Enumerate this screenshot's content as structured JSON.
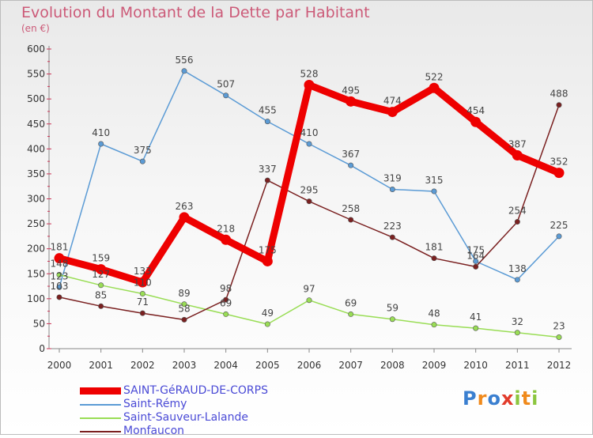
{
  "chart_data": {
    "type": "line",
    "title": "Evolution du Montant de la Dette par Habitant",
    "unit": "(en €)",
    "categories": [
      "2000",
      "2001",
      "2002",
      "2003",
      "2004",
      "2005",
      "2006",
      "2007",
      "2008",
      "2009",
      "2010",
      "2011",
      "2012"
    ],
    "ylim": [
      0,
      600
    ],
    "yticks": [
      0,
      50,
      100,
      150,
      200,
      250,
      300,
      350,
      400,
      450,
      500,
      550,
      600
    ],
    "grid": false,
    "legend_position": "bottom-left",
    "series": [
      {
        "name": "SAINT-GéRAUD-DE-CORPS",
        "color": "#ee0000",
        "emphasis": true,
        "values": [
          181,
          159,
          133,
          263,
          218,
          175,
          528,
          495,
          474,
          522,
          454,
          387,
          352
        ]
      },
      {
        "name": "Saint-Rémy",
        "color": "#5b9bd5",
        "emphasis": false,
        "values": [
          123,
          410,
          375,
          556,
          507,
          455,
          410,
          367,
          319,
          315,
          175,
          138,
          225
        ]
      },
      {
        "name": "Saint-Sauveur-Lalande",
        "color": "#99dd55",
        "emphasis": false,
        "values": [
          148,
          127,
          110,
          89,
          69,
          49,
          97,
          69,
          59,
          48,
          41,
          32,
          23
        ]
      },
      {
        "name": "Monfaucon",
        "color": "#7a2020",
        "emphasis": false,
        "values": [
          103,
          85,
          71,
          58,
          98,
          337,
          295,
          258,
          223,
          181,
          164,
          254,
          488
        ]
      }
    ],
    "point_labels": [
      {
        "text": "181",
        "x": "2000",
        "y": 181
      },
      {
        "text": "159",
        "x": "2001",
        "y": 159
      },
      {
        "text": "133",
        "x": "2002",
        "y": 133
      },
      {
        "text": "263",
        "x": "2003",
        "y": 263
      },
      {
        "text": "218",
        "x": "2004",
        "y": 218
      },
      {
        "text": "175",
        "x": "2005",
        "y": 175
      },
      {
        "text": "528",
        "x": "2006",
        "y": 528
      },
      {
        "text": "495",
        "x": "2007",
        "y": 495
      },
      {
        "text": "474",
        "x": "2008",
        "y": 474
      },
      {
        "text": "522",
        "x": "2009",
        "y": 522
      },
      {
        "text": "454",
        "x": "2010",
        "y": 454
      },
      {
        "text": "387",
        "x": "2011",
        "y": 387
      },
      {
        "text": "352",
        "x": "2012",
        "y": 352
      },
      {
        "text": "123",
        "x": "2000",
        "y": 123
      },
      {
        "text": "410",
        "x": "2001",
        "y": 410
      },
      {
        "text": "375",
        "x": "2002",
        "y": 375
      },
      {
        "text": "556",
        "x": "2003",
        "y": 556
      },
      {
        "text": "507",
        "x": "2004",
        "y": 507
      },
      {
        "text": "455",
        "x": "2005",
        "y": 455
      },
      {
        "text": "410",
        "x": "2006",
        "y": 410
      },
      {
        "text": "367",
        "x": "2007",
        "y": 367
      },
      {
        "text": "319",
        "x": "2008",
        "y": 319
      },
      {
        "text": "315",
        "x": "2009",
        "y": 315
      },
      {
        "text": "175",
        "x": "2010",
        "y": 175
      },
      {
        "text": "138",
        "x": "2011",
        "y": 138
      },
      {
        "text": "225",
        "x": "2012",
        "y": 225
      },
      {
        "text": "148",
        "x": "2000",
        "y": 148
      },
      {
        "text": "127",
        "x": "2001",
        "y": 127
      },
      {
        "text": "110",
        "x": "2002",
        "y": 110
      },
      {
        "text": "89",
        "x": "2003",
        "y": 89
      },
      {
        "text": "69",
        "x": "2004",
        "y": 69
      },
      {
        "text": "49",
        "x": "2005",
        "y": 49
      },
      {
        "text": "97",
        "x": "2006",
        "y": 97
      },
      {
        "text": "69",
        "x": "2007",
        "y": 69
      },
      {
        "text": "59",
        "x": "2008",
        "y": 59
      },
      {
        "text": "48",
        "x": "2009",
        "y": 48
      },
      {
        "text": "41",
        "x": "2010",
        "y": 41
      },
      {
        "text": "32",
        "x": "2011",
        "y": 32
      },
      {
        "text": "23",
        "x": "2012",
        "y": 23
      },
      {
        "text": "103",
        "x": "2000",
        "y": 103
      },
      {
        "text": "85",
        "x": "2001",
        "y": 85
      },
      {
        "text": "71",
        "x": "2002",
        "y": 71
      },
      {
        "text": "58",
        "x": "2003",
        "y": 58
      },
      {
        "text": "98",
        "x": "2004",
        "y": 98
      },
      {
        "text": "337",
        "x": "2005",
        "y": 337
      },
      {
        "text": "295",
        "x": "2006",
        "y": 295
      },
      {
        "text": "258",
        "x": "2007",
        "y": 258
      },
      {
        "text": "223",
        "x": "2008",
        "y": 223
      },
      {
        "text": "181",
        "x": "2009",
        "y": 181
      },
      {
        "text": "164",
        "x": "2010",
        "y": 164
      },
      {
        "text": "254",
        "x": "2011",
        "y": 254
      },
      {
        "text": "488",
        "x": "2012",
        "y": 488
      }
    ]
  },
  "logo": {
    "text": "Proxiti",
    "letter_colors": [
      "#3a7fd0",
      "#f08a1c",
      "#3a7fd0",
      "#e23b2b",
      "#8cc63f",
      "#f08a1c",
      "#8cc63f"
    ]
  }
}
